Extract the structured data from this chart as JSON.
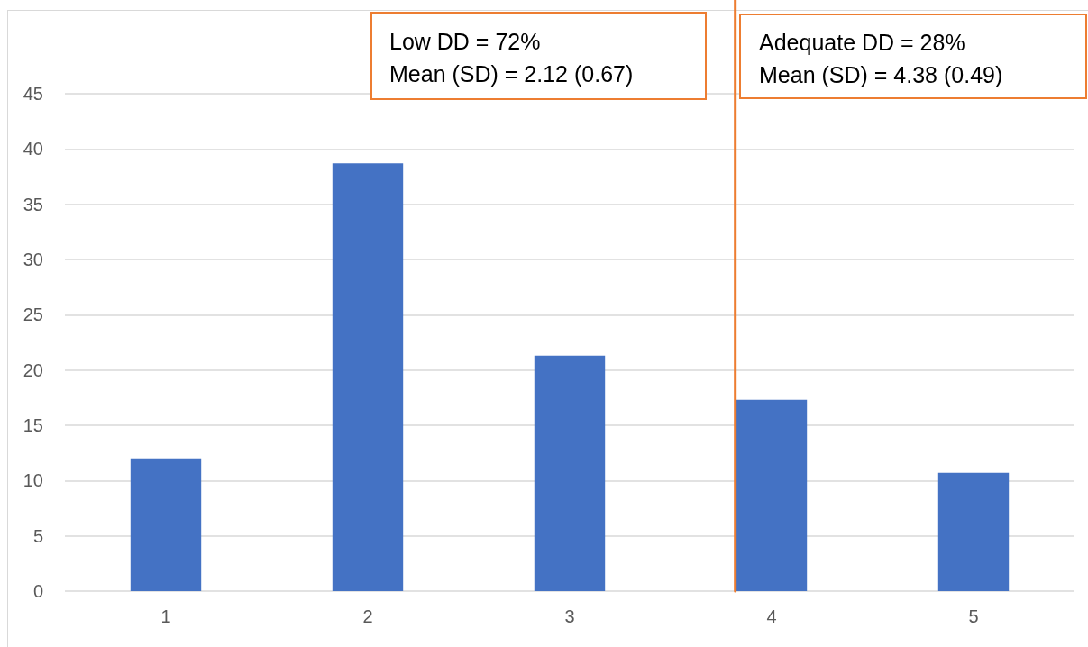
{
  "chart_data": {
    "type": "bar",
    "x": [
      1,
      2,
      3,
      4,
      5
    ],
    "values": [
      12,
      38.7,
      21.3,
      17.3,
      10.7
    ],
    "color": "#4472c4",
    "xlim": [
      0.5,
      5.5
    ],
    "xticks": [
      1,
      2,
      3,
      4,
      5
    ],
    "ylim": [
      0,
      45
    ],
    "yticks": [
      0,
      5,
      10,
      15,
      20,
      25,
      30,
      35,
      40,
      45
    ],
    "grid": "y",
    "ref_lines": [
      {
        "axis": "x",
        "value": 3.82,
        "color": "#ed7d31"
      }
    ],
    "annotations": [
      "Low DD = 72%\nMean (SD) = 2.12 (0.67)",
      "Adequate DD = 28%\nMean (SD) = 4.38 (0.49)"
    ]
  }
}
